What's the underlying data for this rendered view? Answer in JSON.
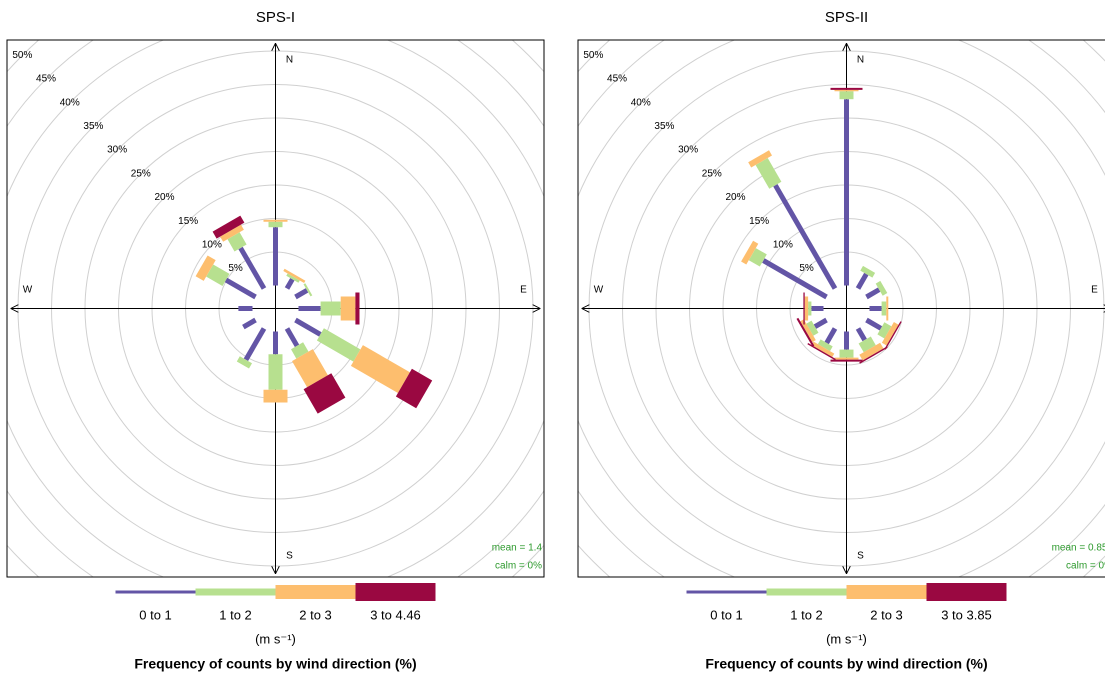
{
  "chart_data": [
    {
      "type": "windrose",
      "title": "SPS-I",
      "compass": [
        "N",
        "E",
        "S",
        "W"
      ],
      "rlim": [
        0,
        50
      ],
      "rticks": [
        {
          "value": 5,
          "label": "5%"
        },
        {
          "value": 10,
          "label": "10%"
        },
        {
          "value": 15,
          "label": "15%"
        },
        {
          "value": 20,
          "label": "20%"
        },
        {
          "value": 25,
          "label": "25%"
        },
        {
          "value": 30,
          "label": "30%"
        },
        {
          "value": 35,
          "label": "35%"
        },
        {
          "value": 40,
          "label": "40%"
        },
        {
          "value": 45,
          "label": "45%"
        },
        {
          "value": 50,
          "label": "50%"
        }
      ],
      "series": [
        {
          "name": "0 to 1",
          "color": "#6355a6",
          "values": [
            8.7,
            1.6,
            2.0,
            3.3,
            4.3,
            3.0,
            3.4,
            5.4,
            2.1,
            2.1,
            5.1,
            7.0
          ]
        },
        {
          "name": "1 to 2",
          "color": "#b7e08f",
          "values": [
            0.8,
            0.4,
            0.3,
            3.0,
            6.3,
            1.6,
            5.3,
            0.9,
            0,
            0,
            2.8,
            2.1
          ]
        },
        {
          "name": "2 to 3",
          "color": "#fdbe6e",
          "values": [
            0.3,
            0.4,
            0,
            2.2,
            8.1,
            4.5,
            1.9,
            0,
            0,
            0,
            1.4,
            0.9
          ]
        },
        {
          "name": "3 to 4.46",
          "color": "#9a0841",
          "values": [
            0,
            0,
            0,
            0.6,
            3.5,
            4.2,
            0,
            0,
            0,
            0,
            0,
            1.2
          ]
        }
      ],
      "stats": [
        "mean = 1.4",
        "calm = 0%"
      ],
      "units": "(m s⁻¹)",
      "caption": "Frequency of counts by wind direction (%)"
    },
    {
      "type": "windrose",
      "title": "SPS-II",
      "compass": [
        "N",
        "E",
        "S",
        "W"
      ],
      "rlim": [
        0,
        50
      ],
      "rticks": [
        {
          "value": 5,
          "label": "5%"
        },
        {
          "value": 10,
          "label": "10%"
        },
        {
          "value": 15,
          "label": "15%"
        },
        {
          "value": 20,
          "label": "20%"
        },
        {
          "value": 25,
          "label": "25%"
        },
        {
          "value": 30,
          "label": "30%"
        },
        {
          "value": 35,
          "label": "35%"
        },
        {
          "value": 40,
          "label": "40%"
        },
        {
          "value": 45,
          "label": "45%"
        },
        {
          "value": 50,
          "label": "50%"
        }
      ],
      "series": [
        {
          "name": "0 to 1",
          "color": "#6355a6",
          "values": [
            27.8,
            2.5,
            2.2,
            1.8,
            2.5,
            2.0,
            2.7,
            2.5,
            2.0,
            1.8,
            10.9,
            17.8
          ]
        },
        {
          "name": "1 to 2",
          "color": "#b7e08f",
          "values": [
            1.2,
            0.8,
            0.8,
            0.7,
            1.2,
            1.5,
            1.2,
            0.8,
            0.9,
            0.5,
            1.9,
            4.1
          ]
        },
        {
          "name": "2 to 3",
          "color": "#fdbe6e",
          "values": [
            0.2,
            0,
            0,
            0.3,
            0.8,
            1.0,
            0.3,
            0.6,
            0.6,
            0.5,
            0.9,
            0.9
          ]
        },
        {
          "name": "3 to 3.85",
          "color": "#9a0841",
          "values": [
            0.3,
            0,
            0,
            0,
            0.2,
            0.2,
            0.3,
            0.2,
            0.3,
            0.2,
            0,
            0
          ]
        }
      ],
      "stats": [
        "mean = 0.855",
        "calm = 0%"
      ],
      "units": "(m s⁻¹)",
      "caption": "Frequency of counts by wind direction (%)"
    }
  ]
}
